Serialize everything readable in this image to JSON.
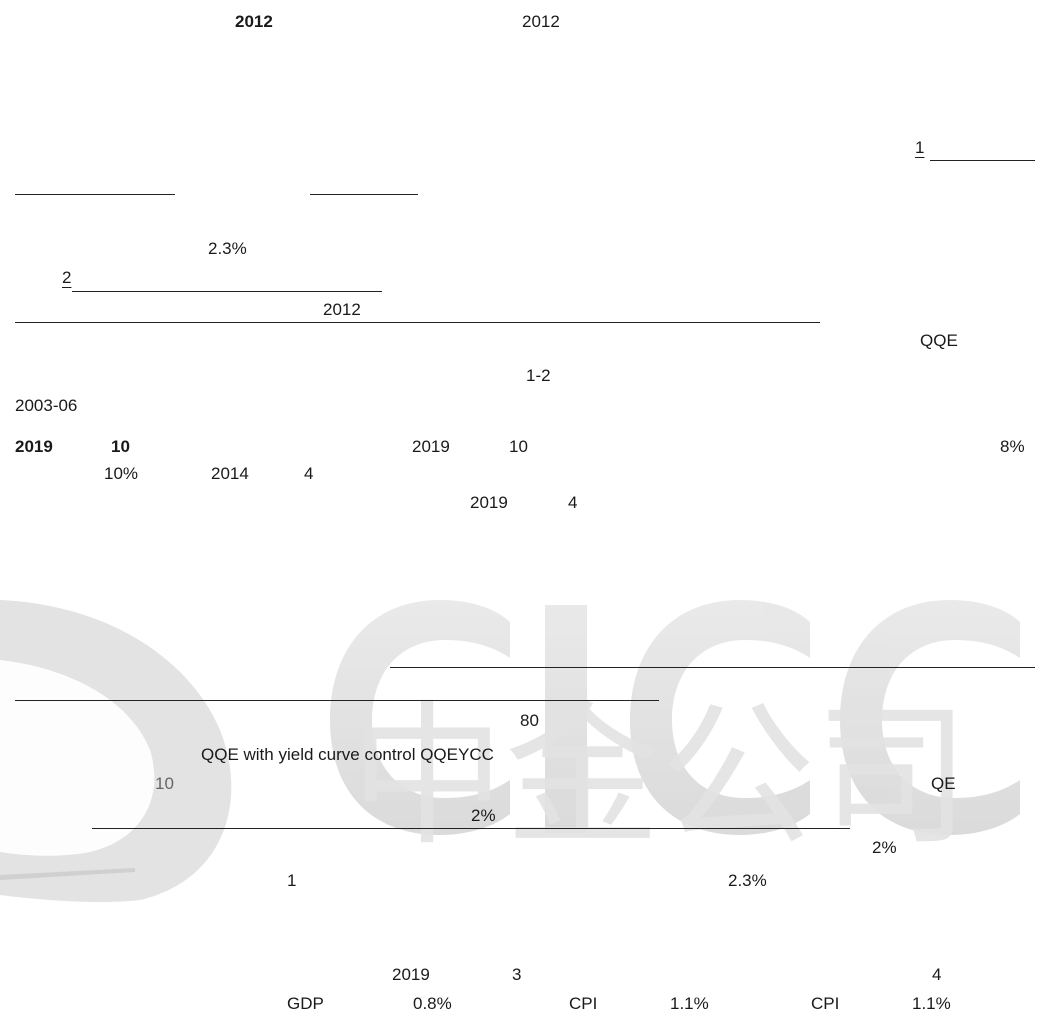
{
  "watermark": {
    "text_latin": "CICC",
    "text_cjk": "中金公司",
    "color": "#d9d9d9"
  },
  "texts": {
    "r1_a": "2012",
    "r1_b": "2012",
    "ref_1": "1",
    "pct_23_a": "2.3%",
    "ref_2": "2",
    "r_2012": "2012",
    "qqe_a": "QQE",
    "range_12": "1-2",
    "period": "2003-06",
    "y2019_a": "2019",
    "n10_a": "10",
    "y2019_b": "2019",
    "n10_b": "10",
    "pct_8": "8%",
    "pct_10": "10%",
    "y2014": "2014",
    "n4_a": "4",
    "y2019_c": "2019",
    "n4_b": "4",
    "n80": "80",
    "qqeycc": "QQE with yield curve control    QQEYCC",
    "n10_c": "10",
    "qe": "QE",
    "pct_2_a": "2%",
    "pct_2_b": "2%",
    "n1": "1",
    "pct_23_b": "2.3%",
    "y2019_d": "2019",
    "n3": "3",
    "n4_c": "4",
    "gdp": "GDP",
    "pct_08": "0.8%",
    "cpi_a": "CPI",
    "pct_11_a": "1.1%",
    "cpi_b": "CPI",
    "pct_11_b": "1.1%"
  }
}
